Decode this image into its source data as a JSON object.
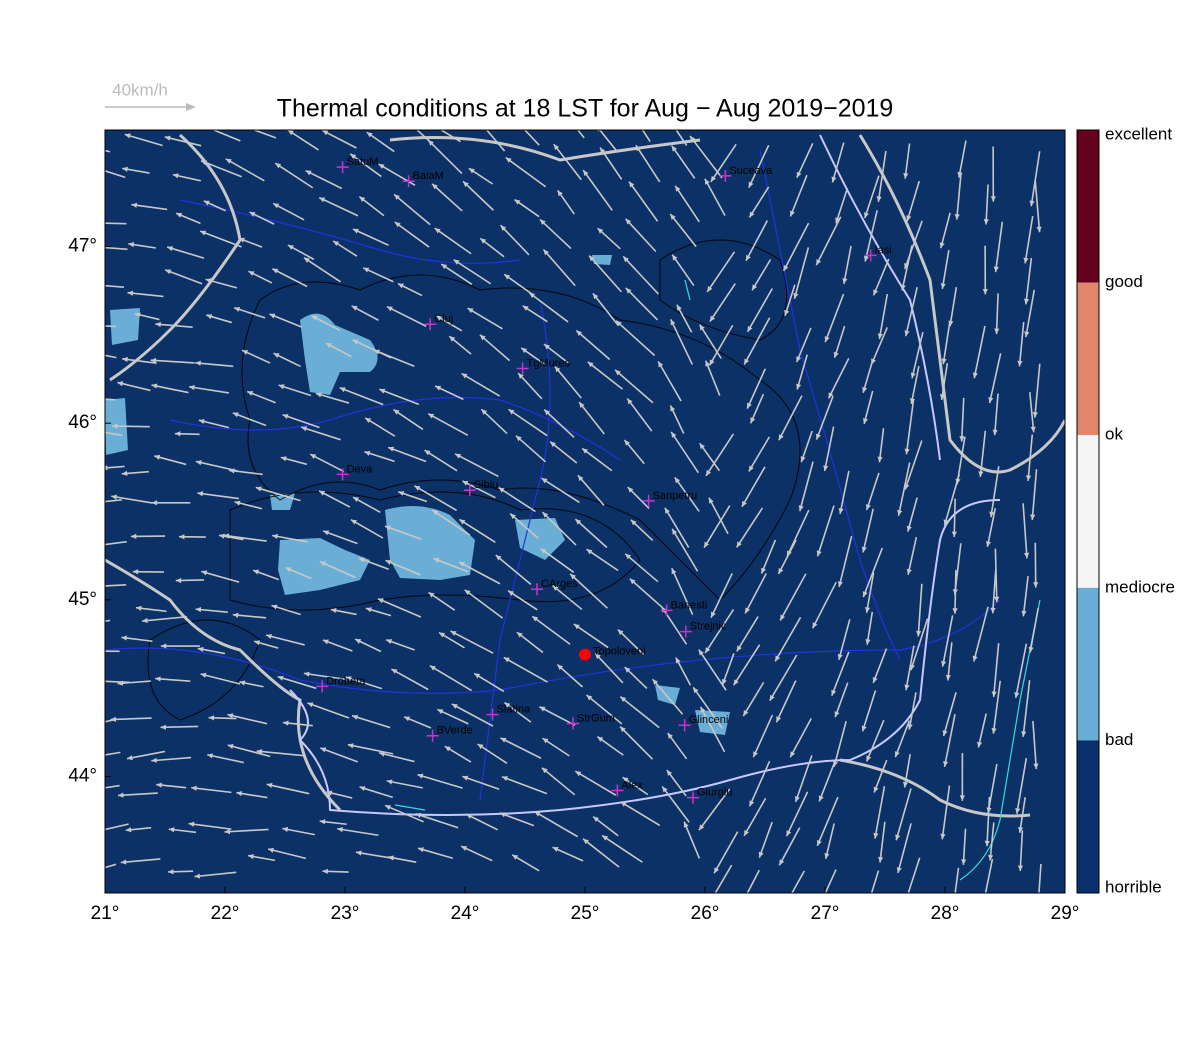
{
  "title": "Thermal conditions at 18 LST for Aug − Aug  2019−2019",
  "wind_scale_label": "40km/h",
  "map": {
    "xlim": [
      21,
      29
    ],
    "ylim": [
      43.34,
      47.66
    ],
    "xticks": [
      {
        "value": 21,
        "label": "21°"
      },
      {
        "value": 22,
        "label": "22°"
      },
      {
        "value": 23,
        "label": "23°"
      },
      {
        "value": 24,
        "label": "24°"
      },
      {
        "value": 25,
        "label": "25°"
      },
      {
        "value": 26,
        "label": "26°"
      },
      {
        "value": 27,
        "label": "27°"
      },
      {
        "value": 28,
        "label": "28°"
      },
      {
        "value": 29,
        "label": "29°"
      }
    ],
    "yticks": [
      {
        "value": 44,
        "label": "44°"
      },
      {
        "value": 45,
        "label": "45°"
      },
      {
        "value": 46,
        "label": "46°"
      },
      {
        "value": 47,
        "label": "47°"
      }
    ],
    "places": [
      {
        "name": "SatuM",
        "lon": 22.98,
        "lat": 47.45
      },
      {
        "name": "BaiaM",
        "lon": 23.53,
        "lat": 47.37
      },
      {
        "name": "Suceava",
        "lon": 26.17,
        "lat": 47.4
      },
      {
        "name": "Iasi",
        "lon": 27.38,
        "lat": 46.95
      },
      {
        "name": "Cluj",
        "lon": 23.71,
        "lat": 46.56
      },
      {
        "name": "TgMures",
        "lon": 24.48,
        "lat": 46.31
      },
      {
        "name": "Deva",
        "lon": 22.98,
        "lat": 45.71
      },
      {
        "name": "Sibiu",
        "lon": 24.04,
        "lat": 45.62
      },
      {
        "name": "Sanpetru",
        "lon": 25.53,
        "lat": 45.56
      },
      {
        "name": "CArges",
        "lon": 24.6,
        "lat": 45.06
      },
      {
        "name": "Banesti",
        "lon": 25.68,
        "lat": 44.94
      },
      {
        "name": "Strejnic",
        "lon": 25.84,
        "lat": 44.82
      },
      {
        "name": "Drobeta",
        "lon": 22.81,
        "lat": 44.51
      },
      {
        "name": "Slatina",
        "lon": 24.23,
        "lat": 44.35
      },
      {
        "name": "StrGum",
        "lon": 24.9,
        "lat": 44.3
      },
      {
        "name": "BVerde",
        "lon": 23.73,
        "lat": 44.23
      },
      {
        "name": "Glinceni",
        "lon": 25.83,
        "lat": 44.29
      },
      {
        "name": "Alex",
        "lon": 25.27,
        "lat": 43.92
      },
      {
        "name": "Giurgiu",
        "lon": 25.9,
        "lat": 43.88
      }
    ],
    "highlight": {
      "name": "Topoloveni",
      "lon": 25.0,
      "lat": 44.69,
      "color": "#ff0000"
    },
    "place_color": "#cc33cc"
  },
  "legend": {
    "labels": [
      "excellent",
      "good",
      "ok",
      "mediocre",
      "bad",
      "horrible"
    ],
    "colors": [
      "#67001f",
      "#e3876a",
      "#f5f5f7",
      "#6aaed6",
      "#08306b"
    ]
  }
}
